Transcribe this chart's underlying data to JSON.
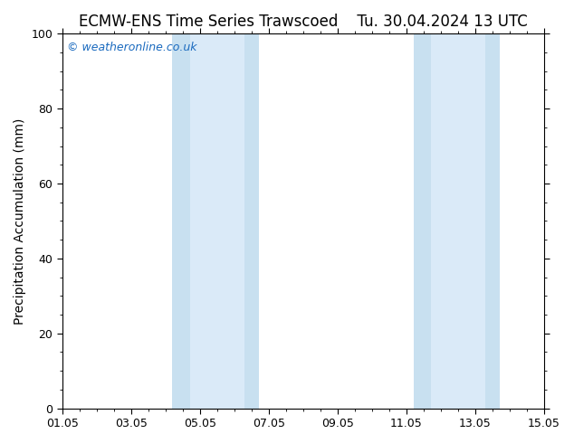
{
  "title": "ECMW-ENS Time Series Trawscoed    Tu. 30.04.2024 13 UTC",
  "ylabel": "Precipitation Accumulation (mm)",
  "ylim": [
    0,
    100
  ],
  "yticks": [
    0,
    20,
    40,
    60,
    80,
    100
  ],
  "xlim": [
    0,
    14
  ],
  "xtick_positions": [
    0,
    2,
    4,
    6,
    8,
    10,
    12,
    14
  ],
  "xtick_labels": [
    "01.05",
    "03.05",
    "05.05",
    "07.05",
    "09.05",
    "11.05",
    "13.05",
    "15.05"
  ],
  "shaded_bands": [
    {
      "xmin": 3.2,
      "xmax": 3.7,
      "color": "#c8e0f0"
    },
    {
      "xmin": 3.7,
      "xmax": 5.3,
      "color": "#daeaf8"
    },
    {
      "xmin": 5.3,
      "xmax": 5.7,
      "color": "#c8e0f0"
    },
    {
      "xmin": 10.2,
      "xmax": 10.7,
      "color": "#c8e0f0"
    },
    {
      "xmin": 10.7,
      "xmax": 12.3,
      "color": "#daeaf8"
    },
    {
      "xmin": 12.3,
      "xmax": 12.7,
      "color": "#c8e0f0"
    }
  ],
  "background_color": "#ffffff",
  "watermark_text": "© weatheronline.co.uk",
  "watermark_color": "#1a6abf",
  "watermark_fontsize": 9,
  "title_fontsize": 12,
  "ylabel_fontsize": 10,
  "tick_fontsize": 9,
  "axis_color": "#000000",
  "minor_tick_count": 3
}
